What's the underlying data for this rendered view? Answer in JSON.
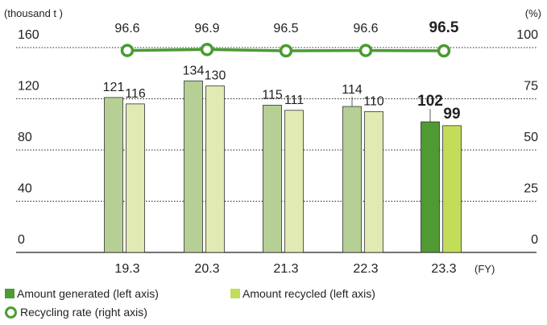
{
  "colors": {
    "generated": "#b6cf94",
    "recycled": "#e0eab2",
    "generated_latest": "#4f9a33",
    "recycled_latest": "#c2dd5a",
    "rate_line": "#4a9b32",
    "bar_stroke": "#333333"
  },
  "chart_data": {
    "type": "bar",
    "left_unit": "(thousand t )",
    "right_unit": "(%)",
    "x_unit": "(FY)",
    "categories": [
      "19.3",
      "20.3",
      "21.3",
      "22.3",
      "23.3"
    ],
    "left_ticks": [
      "160",
      "120",
      "80",
      "40",
      "0"
    ],
    "right_ticks": [
      "100",
      "75",
      "50",
      "25",
      "0"
    ],
    "ylim_left": [
      0,
      160
    ],
    "ylim_right": [
      0,
      100
    ],
    "grid": "dotted horizontal",
    "series": [
      {
        "name": "Amount generated (left axis)",
        "axis": "left",
        "values": [
          121,
          134,
          115,
          114,
          102
        ],
        "labels": [
          "121",
          "134",
          "115",
          "114",
          "102"
        ]
      },
      {
        "name": "Amount recycled (left axis)",
        "axis": "left",
        "values": [
          116,
          130,
          111,
          110,
          99
        ],
        "labels": [
          "116",
          "130",
          "111",
          "110",
          "99"
        ]
      },
      {
        "name": "Recycling rate (right axis)",
        "axis": "right",
        "type": "line",
        "values": [
          96.6,
          96.9,
          96.5,
          96.6,
          96.5
        ],
        "labels": [
          "96.6",
          "96.9",
          "96.5",
          "96.6",
          "96.5"
        ]
      }
    ],
    "legend_position": "bottom-left"
  }
}
